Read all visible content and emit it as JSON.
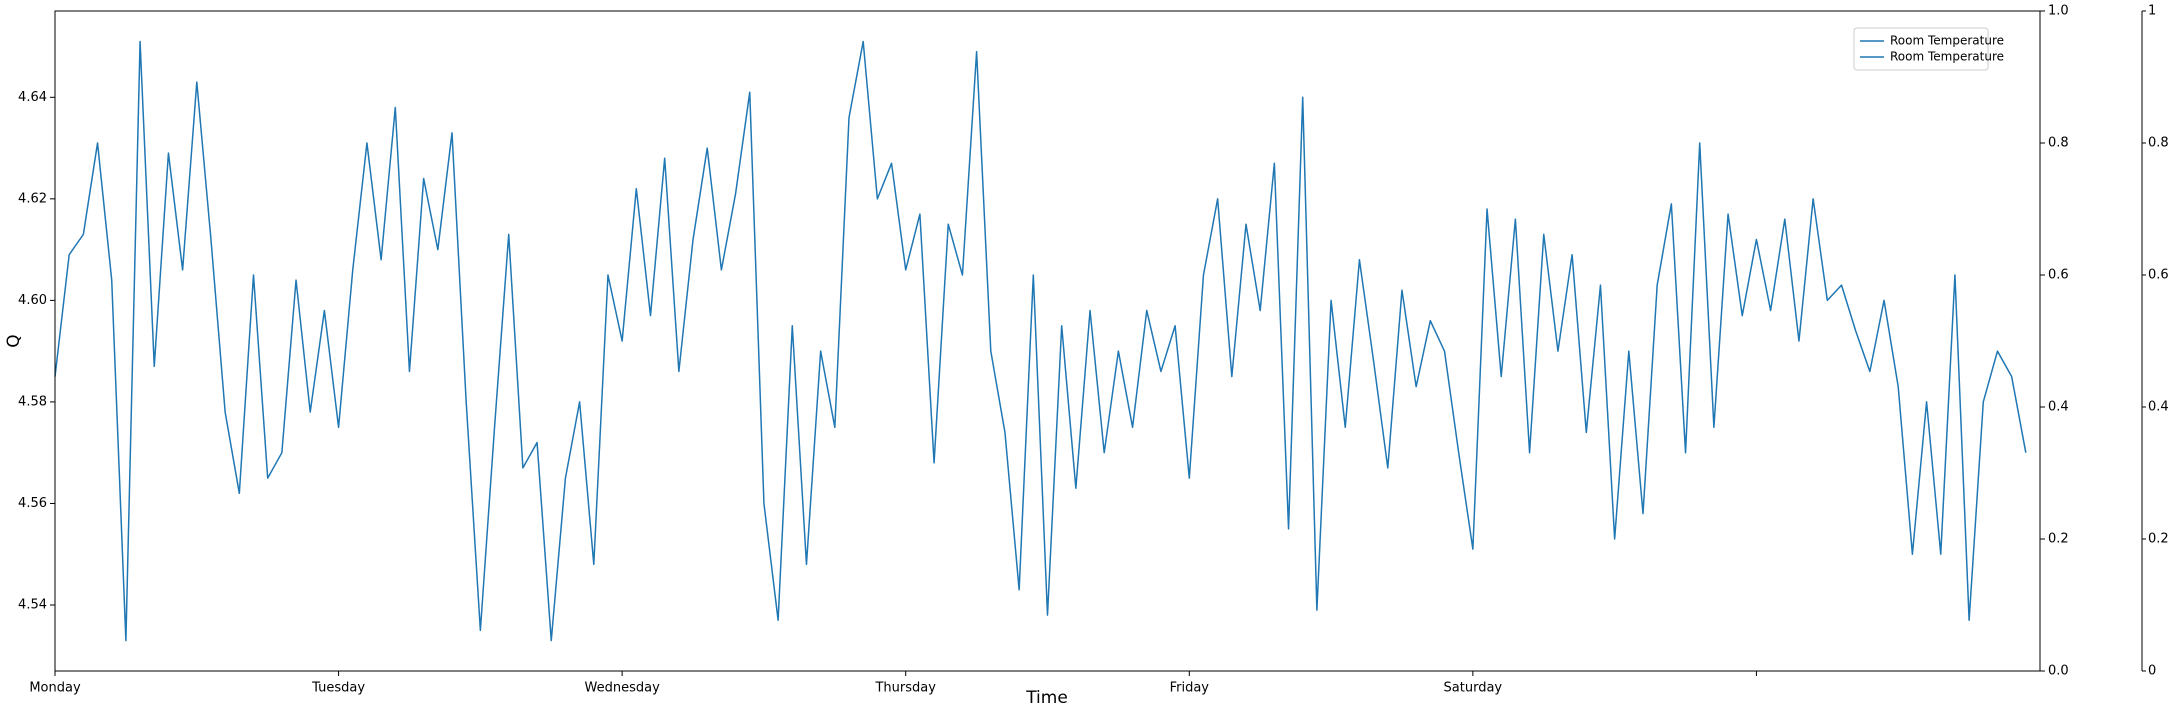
{
  "chart_data": {
    "type": "line",
    "x_label": "Time",
    "y_label": "Q",
    "x": [
      0,
      0.05,
      0.1,
      0.15,
      0.2,
      0.25,
      0.3,
      0.35,
      0.4,
      0.45,
      0.5,
      0.55,
      0.6,
      0.65,
      0.7,
      0.75,
      0.8,
      0.85,
      0.9,
      0.95,
      1,
      1.05,
      1.1,
      1.15,
      1.2,
      1.25,
      1.3,
      1.35,
      1.4,
      1.45,
      1.5,
      1.55,
      1.6,
      1.65,
      1.7,
      1.75,
      1.8,
      1.85,
      1.9,
      1.95,
      2,
      2.05,
      2.1,
      2.15,
      2.2,
      2.25,
      2.3,
      2.35,
      2.4,
      2.45,
      2.5,
      2.55,
      2.6,
      2.65,
      2.7,
      2.75,
      2.8,
      2.85,
      2.9,
      2.95,
      3,
      3.05,
      3.1,
      3.15,
      3.2,
      3.25,
      3.3,
      3.35,
      3.4,
      3.45,
      3.5,
      3.55,
      3.6,
      3.65,
      3.7,
      3.75,
      3.8,
      3.85,
      3.9,
      3.95,
      4,
      4.05,
      4.1,
      4.15,
      4.2,
      4.25,
      4.3,
      4.35,
      4.4,
      4.45,
      4.5,
      4.55,
      4.6,
      4.65,
      4.7,
      4.75,
      4.8,
      4.85,
      4.9,
      4.95,
      5,
      5.05,
      5.1,
      5.15,
      5.2,
      5.25,
      5.3,
      5.35,
      5.4,
      5.45,
      5.5,
      5.55,
      5.6,
      5.65,
      5.7,
      5.75,
      5.8,
      5.85,
      5.9,
      5.95,
      6,
      6.05,
      6.1,
      6.15,
      6.2,
      6.25,
      6.3,
      6.35,
      6.4,
      6.45,
      6.5,
      6.55,
      6.6,
      6.65,
      6.7,
      6.75,
      6.8,
      6.85,
      6.9,
      6.95
    ],
    "series": [
      {
        "name": "Room Temperature",
        "color": "#1f77b4",
        "values": [
          4.585,
          4.609,
          4.613,
          4.631,
          4.604,
          4.533,
          4.651,
          4.587,
          4.629,
          4.606,
          4.643,
          4.612,
          4.578,
          4.562,
          4.605,
          4.565,
          4.57,
          4.604,
          4.578,
          4.598,
          4.575,
          4.606,
          4.631,
          4.608,
          4.638,
          4.586,
          4.624,
          4.61,
          4.633,
          4.58,
          4.535,
          4.575,
          4.613,
          4.567,
          4.572,
          4.533,
          4.565,
          4.58,
          4.548,
          4.605,
          4.592,
          4.622,
          4.597,
          4.628,
          4.586,
          4.612,
          4.63,
          4.606,
          4.621,
          4.641,
          4.56,
          4.537,
          4.595,
          4.548,
          4.59,
          4.575,
          4.636,
          4.651,
          4.62,
          4.627,
          4.606,
          4.617,
          4.568,
          4.615,
          4.605,
          4.649,
          4.59,
          4.574,
          4.543,
          4.605,
          4.538,
          4.595,
          4.563,
          4.598,
          4.57,
          4.59,
          4.575,
          4.598,
          4.586,
          4.595,
          4.565,
          4.605,
          4.62,
          4.585,
          4.615,
          4.598,
          4.627,
          4.555,
          4.64,
          4.539,
          4.6,
          4.575,
          4.608,
          4.588,
          4.567,
          4.602,
          4.583,
          4.596,
          4.59,
          4.57,
          4.551,
          4.618,
          4.585,
          4.616,
          4.57,
          4.613,
          4.59,
          4.609,
          4.574,
          4.603,
          4.553,
          4.59,
          4.558,
          4.603,
          4.619,
          4.57,
          4.631,
          4.575,
          4.617,
          4.597,
          4.612,
          4.598,
          4.616,
          4.592,
          4.62,
          4.6,
          4.603,
          4.594,
          4.586,
          4.6,
          4.583,
          4.55,
          4.58,
          4.55,
          4.605,
          4.537,
          4.58,
          4.59,
          4.585,
          4.57
        ]
      },
      {
        "name": "Room Temperature",
        "color": "#1f77b4",
        "axis": "y2",
        "x": [],
        "values": []
      }
    ],
    "xlim": [
      0,
      7
    ],
    "xticks": [
      {
        "value": 0,
        "label": "Monday"
      },
      {
        "value": 1,
        "label": "Tuesday"
      },
      {
        "value": 2,
        "label": "Wednesday"
      },
      {
        "value": 3,
        "label": "Thursday"
      },
      {
        "value": 4,
        "label": "Friday"
      },
      {
        "value": 5,
        "label": "Saturday"
      },
      {
        "value": 6,
        "label": null
      }
    ],
    "ylim": [
      4.527,
      4.657
    ],
    "yticks": [
      4.54,
      4.56,
      4.58,
      {
        "value": 4.6,
        "label": "4.60"
      },
      4.62,
      4.64
    ],
    "y2lim": [
      0,
      1
    ],
    "y2ticks": [
      {
        "value": 0,
        "label": "0.0"
      },
      0.2,
      0.4,
      0.6,
      0.8,
      {
        "value": 1,
        "label": "1.0"
      }
    ],
    "y3lim": [
      0,
      1
    ],
    "y3ticks": [
      0,
      0.2,
      0.4,
      0.6,
      0.8,
      1
    ],
    "legend": "upper right"
  }
}
